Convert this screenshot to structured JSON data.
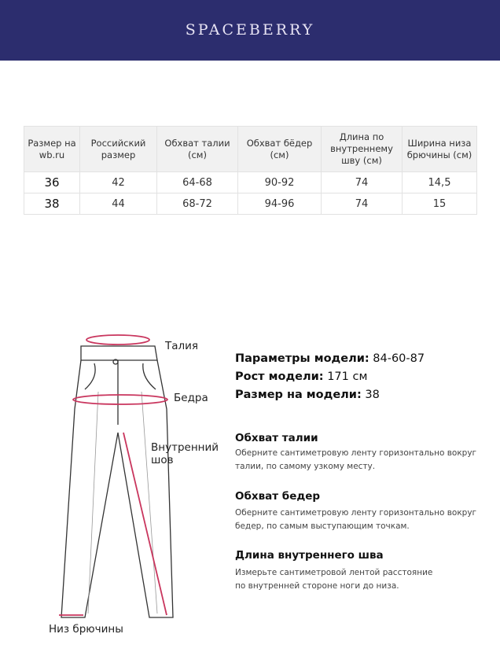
{
  "brand": "SPACEBERRY",
  "colors": {
    "header": "#2c2d6e",
    "accent": "#c9365e"
  },
  "table": {
    "headers": [
      "Размер на wb.ru",
      "Российский размер",
      "Обхват талии (см)",
      "Обхват бёдер (см)",
      "Длина по внутреннему шву (см)",
      "Ширина низа брючины (см)"
    ],
    "rows": [
      [
        "36",
        "42",
        "64-68",
        "90-92",
        "74",
        "14,5"
      ],
      [
        "38",
        "44",
        "68-72",
        "94-96",
        "74",
        "15"
      ]
    ]
  },
  "diagram": {
    "waist": "Талия",
    "hips": "Бедра",
    "inseam_1": "Внутренний",
    "inseam_2": "шов",
    "hem": "Низ брючины"
  },
  "model": {
    "params_label": "Параметры модели:",
    "params": "84-60-87",
    "height_label": "Рост модели:",
    "height": "171 см",
    "size_label": "Размер на модели:",
    "size": "38"
  },
  "guide": [
    {
      "title": "Обхват талии",
      "line1": "Оберните сантиметровую ленту горизонтально вокруг",
      "line2": "талии, по самому узкому месту."
    },
    {
      "title": "Обхват бедер",
      "line1": "Оберните сантиметровую ленту горизонтально вокруг",
      "line2": "бедер, по самым выступающим точкам."
    },
    {
      "title": "Длина внутреннего шва",
      "line1": "Измерьте сантиметровой лентой расстояние",
      "line2": "по внутренней стороне ноги до низа."
    }
  ]
}
